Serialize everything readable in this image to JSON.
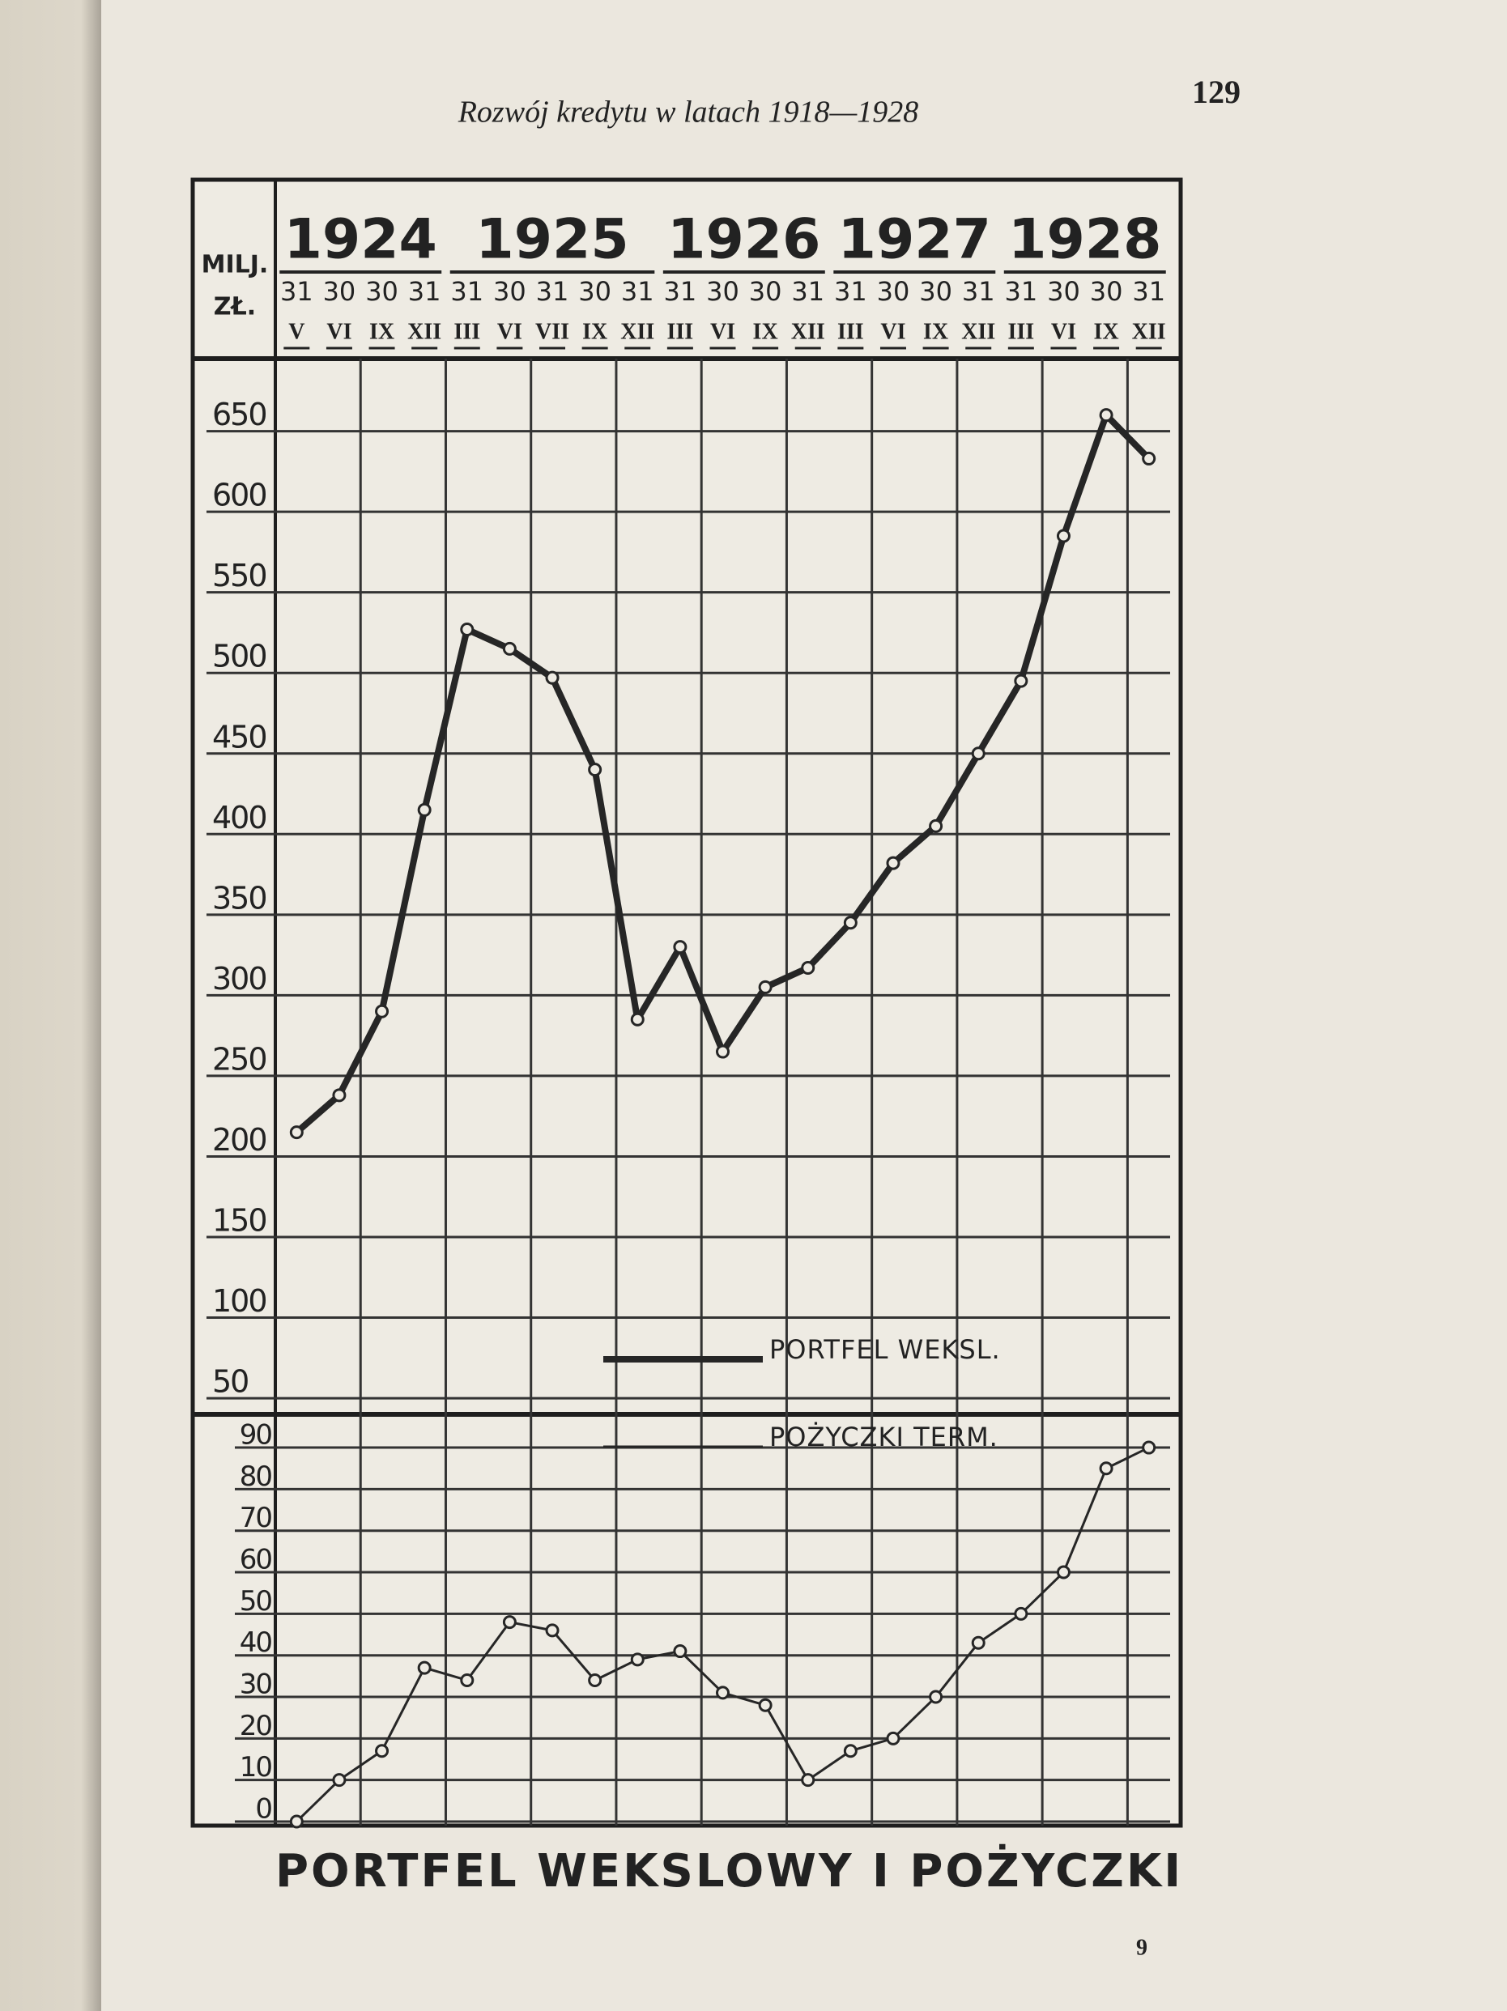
{
  "page_header": "Rozwój kredytu w latach 1918—1928",
  "page_number": "129",
  "signature": "9",
  "chart_data": {
    "type": "line",
    "title": "PORTFEL WEKSLOWY I POŻYCZKI",
    "ylabel_lines": [
      "MILJ.",
      "ZŁ."
    ],
    "year_groups": [
      {
        "year": "1924",
        "columns": [
          {
            "day": "31",
            "month": "V"
          },
          {
            "day": "30",
            "month": "VI"
          },
          {
            "day": "30",
            "month": "IX"
          },
          {
            "day": "31",
            "month": "XII"
          }
        ]
      },
      {
        "year": "1925",
        "columns": [
          {
            "day": "31",
            "month": "III"
          },
          {
            "day": "30",
            "month": "VI"
          },
          {
            "day": "31",
            "month": "VII"
          },
          {
            "day": "30",
            "month": "IX"
          },
          {
            "day": "31",
            "month": "XII"
          }
        ]
      },
      {
        "year": "1926",
        "columns": [
          {
            "day": "31",
            "month": "III"
          },
          {
            "day": "30",
            "month": "VI"
          },
          {
            "day": "30",
            "month": "IX"
          },
          {
            "day": "31",
            "month": "XII"
          }
        ]
      },
      {
        "year": "1927",
        "columns": [
          {
            "day": "31",
            "month": "III"
          },
          {
            "day": "30",
            "month": "VI"
          },
          {
            "day": "30",
            "month": "IX"
          },
          {
            "day": "31",
            "month": "XII"
          }
        ]
      },
      {
        "year": "1928",
        "columns": [
          {
            "day": "31",
            "month": "III"
          },
          {
            "day": "30",
            "month": "VI"
          },
          {
            "day": "30",
            "month": "IX"
          },
          {
            "day": "31",
            "month": "XII"
          }
        ]
      }
    ],
    "ylim": [
      40,
      695
    ],
    "yticks": [
      50,
      100,
      150,
      200,
      250,
      300,
      350,
      400,
      450,
      500,
      550,
      600,
      650
    ],
    "y2lim": [
      0,
      98
    ],
    "y2ticks": [
      0,
      10,
      20,
      30,
      40,
      50,
      60,
      70,
      80,
      90
    ],
    "grid": true,
    "series": [
      {
        "name": "PORTFEL WEKSL.",
        "color": "#262626",
        "values": [
          215,
          238,
          290,
          415,
          527,
          515,
          497,
          440,
          285,
          330,
          265,
          305,
          317,
          345,
          382,
          405,
          450,
          495,
          585,
          660,
          633
        ]
      },
      {
        "name": "POŻYCZKI TERM.",
        "color": "#262626",
        "axis": "y2",
        "values": [
          0,
          10,
          17,
          37,
          34,
          48,
          46,
          34,
          39,
          41,
          31,
          28,
          10,
          17,
          20,
          30,
          43,
          50,
          60,
          85,
          90
        ]
      }
    ]
  }
}
